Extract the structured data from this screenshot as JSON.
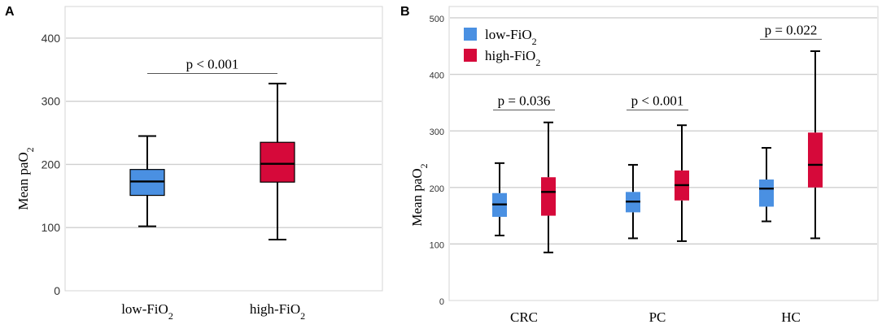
{
  "chart_data": [
    {
      "panel": "A",
      "type": "box",
      "ylabel_main": "Mean paO",
      "ylabel_sub": "2",
      "ylim": [
        0,
        450
      ],
      "yticks": [
        0,
        100,
        200,
        300,
        400
      ],
      "ytick_labels": [
        "0",
        "100",
        "200",
        "300",
        "400"
      ],
      "grid": true,
      "categories": [
        {
          "label_main": "low-FiO",
          "label_sub": "2"
        },
        {
          "label_main": "high-FiO",
          "label_sub": "2"
        }
      ],
      "series": [
        {
          "name": "low-FiO2",
          "color": "#4a90e2",
          "boxes": [
            {
              "min": 102,
              "q1": 151,
              "median": 173,
              "q3": 192,
              "max": 245
            }
          ]
        },
        {
          "name": "high-FiO2",
          "color": "#d6093a",
          "boxes": [
            {
              "min": 81,
              "q1": 172,
              "median": 201,
              "q3": 235,
              "max": 328
            }
          ]
        }
      ],
      "annotations": [
        {
          "text": "p < 0.001",
          "x_from": 0,
          "x_to": 1,
          "y": 344
        }
      ]
    },
    {
      "panel": "B",
      "type": "box",
      "ylabel_main": "Mean paO",
      "ylabel_sub": "2",
      "ylim": [
        0,
        520
      ],
      "yticks": [
        0,
        100,
        200,
        300,
        400,
        500
      ],
      "ytick_labels": [
        "0",
        "100",
        "200",
        "300",
        "400",
        "500"
      ],
      "grid": true,
      "categories": [
        {
          "label_main": "CRC",
          "label_sub": ""
        },
        {
          "label_main": "PC",
          "label_sub": ""
        },
        {
          "label_main": "HC",
          "label_sub": ""
        }
      ],
      "series": [
        {
          "name": "low-FiO2",
          "color": "#4a90e2",
          "boxes": [
            {
              "min": 115,
              "q1": 148,
              "median": 170,
              "q3": 190,
              "max": 243
            },
            {
              "min": 110,
              "q1": 156,
              "median": 175,
              "q3": 192,
              "max": 240
            },
            {
              "min": 140,
              "q1": 166,
              "median": 198,
              "q3": 214,
              "max": 270
            }
          ]
        },
        {
          "name": "high-FiO2",
          "color": "#d6093a",
          "boxes": [
            {
              "min": 85,
              "q1": 150,
              "median": 192,
              "q3": 218,
              "max": 315
            },
            {
              "min": 105,
              "q1": 177,
              "median": 204,
              "q3": 230,
              "max": 310
            },
            {
              "min": 110,
              "q1": 200,
              "median": 240,
              "q3": 297,
              "max": 441
            }
          ]
        }
      ],
      "legend": {
        "placement": "top-left",
        "entries": [
          {
            "label_main": "low-FiO",
            "label_sub": "2",
            "color": "#4a90e2"
          },
          {
            "label_main": "high-FiO",
            "label_sub": "2",
            "color": "#d6093a"
          }
        ]
      },
      "annotations": [
        {
          "text": "p = 0.036",
          "category": 0,
          "y": 337
        },
        {
          "text": "p < 0.001",
          "category": 1,
          "y": 337
        },
        {
          "text": "p = 0.022",
          "category": 2,
          "y": 462
        }
      ]
    }
  ]
}
